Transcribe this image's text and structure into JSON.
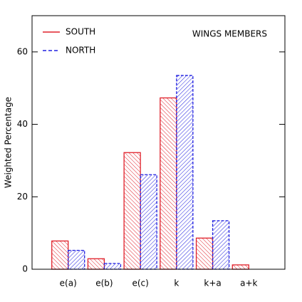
{
  "chart_data": {
    "type": "bar",
    "y_label": "Weighted Percentage",
    "annotation": "WINGS MEMBERS",
    "categories": [
      "e(a)",
      "e(b)",
      "e(c)",
      "k",
      "k+a",
      "a+k"
    ],
    "series": [
      {
        "name": "SOUTH",
        "color": "#e0202a",
        "line_style": "solid",
        "values": [
          7.8,
          2.9,
          32.2,
          47.3,
          8.6,
          1.2
        ]
      },
      {
        "name": "NORTH",
        "color": "#2020e0",
        "line_style": "dashed",
        "values": [
          5.2,
          1.6,
          26.1,
          53.5,
          13.4,
          0
        ]
      }
    ],
    "ylim": [
      0,
      70
    ],
    "yticks": [
      0,
      20,
      40,
      60
    ],
    "legend": "top-left"
  }
}
